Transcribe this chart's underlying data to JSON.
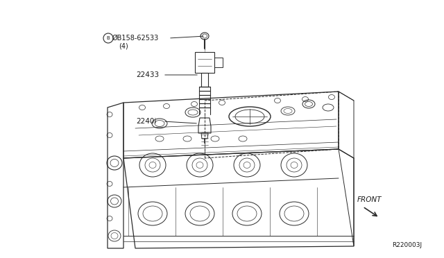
{
  "background_color": "#ffffff",
  "fig_width": 6.4,
  "fig_height": 3.72,
  "dpi": 100,
  "labels": {
    "bolt": "ØB158-62533",
    "bolt_sub": "(4)",
    "coil": "22433",
    "spark_plug": "2240i",
    "front": "FRONT",
    "ref": "R220003J"
  },
  "text_color": "#1a1a1a",
  "line_color": "#2a2a2a"
}
